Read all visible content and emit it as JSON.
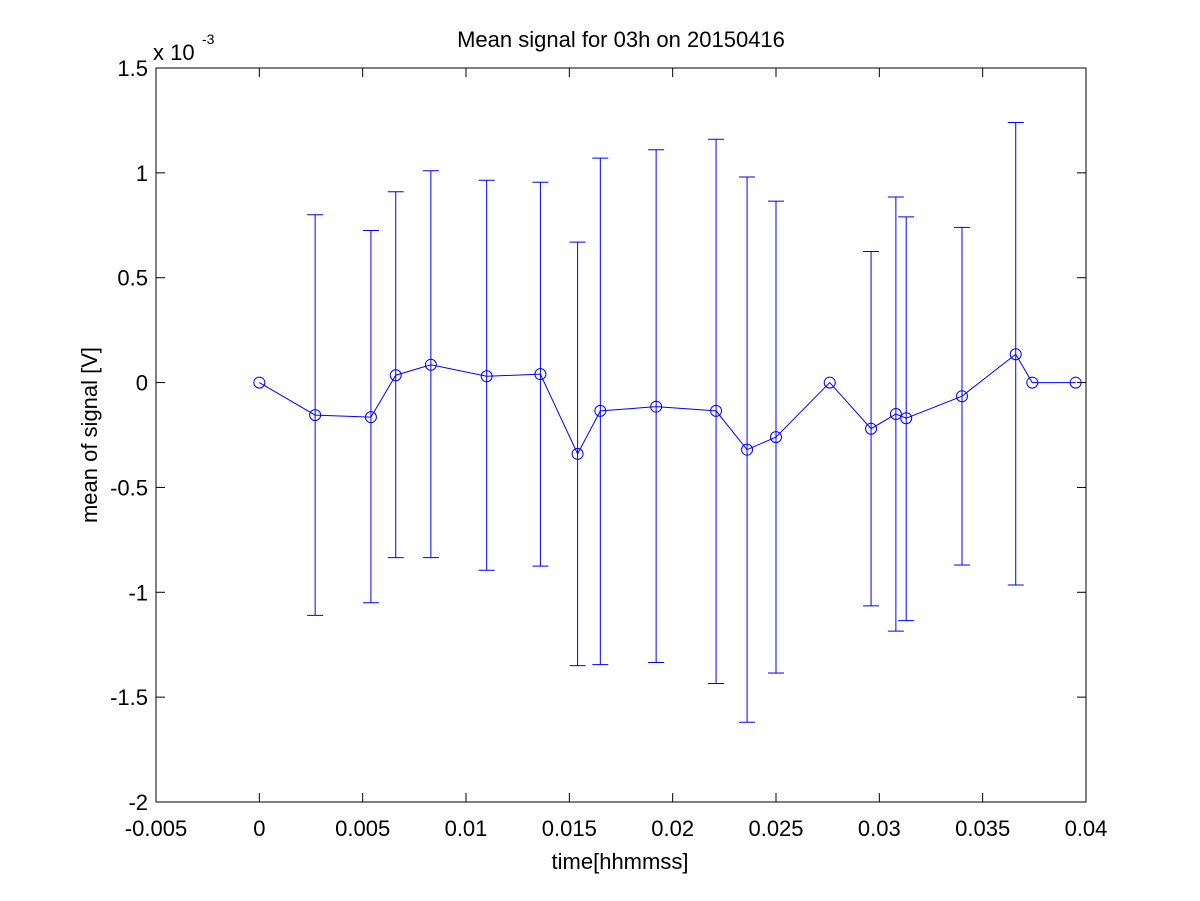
{
  "chart_data": {
    "type": "line",
    "title": "Mean signal for 03h on 20150416",
    "xlabel": "time[hhmmss]",
    "ylabel": "mean of signal [V]",
    "y_multiplier": "x 10",
    "y_multiplier_exponent": "-3",
    "xlim": [
      -0.005,
      0.04
    ],
    "ylim": [
      -2,
      1.5
    ],
    "x_ticks": [
      -0.005,
      0,
      0.005,
      0.01,
      0.015,
      0.02,
      0.025,
      0.03,
      0.035,
      0.04
    ],
    "x_tick_labels": [
      "-0.005",
      "0",
      "0.005",
      "0.01",
      "0.015",
      "0.02",
      "0.025",
      "0.03",
      "0.035",
      "0.04"
    ],
    "y_ticks": [
      -2,
      -1.5,
      -1,
      -0.5,
      0,
      0.5,
      1,
      1.5
    ],
    "y_tick_labels": [
      "-2",
      "-1.5",
      "-1",
      "-0.5",
      "0",
      "0.5",
      "1",
      "1.5"
    ],
    "grid": false,
    "legend": "none",
    "color": "#0000ff",
    "axis_color": "#000000",
    "marker": "circle",
    "series": [
      {
        "x": [
          0,
          0.0027,
          0.0054,
          0.0066,
          0.0083,
          0.011,
          0.0136,
          0.0154,
          0.0165,
          0.0192,
          0.0221,
          0.0236,
          0.025,
          0.0276,
          0.0296,
          0.0308,
          0.0313,
          0.034,
          0.0366,
          0.0374,
          0.0395
        ],
        "y": [
          0,
          -0.155,
          -0.165,
          0.035,
          0.085,
          0.03,
          0.04,
          -0.34,
          -0.135,
          -0.115,
          -0.135,
          -0.32,
          -0.26,
          0,
          -0.22,
          -0.15,
          -0.17,
          -0.065,
          0.135,
          0,
          0
        ],
        "err_low": [
          0,
          -1.11,
          -1.05,
          -0.835,
          -0.835,
          -0.895,
          -0.875,
          -1.35,
          -1.345,
          -1.335,
          -1.435,
          -1.62,
          -1.385,
          0,
          -1.065,
          -1.185,
          -1.135,
          -0.87,
          -0.965,
          0,
          0
        ],
        "err_high": [
          0,
          0.8,
          0.725,
          0.91,
          1.01,
          0.965,
          0.955,
          0.67,
          1.07,
          1.11,
          1.16,
          0.98,
          0.865,
          0,
          0.625,
          0.885,
          0.79,
          0.74,
          1.24,
          0,
          0
        ]
      }
    ]
  }
}
